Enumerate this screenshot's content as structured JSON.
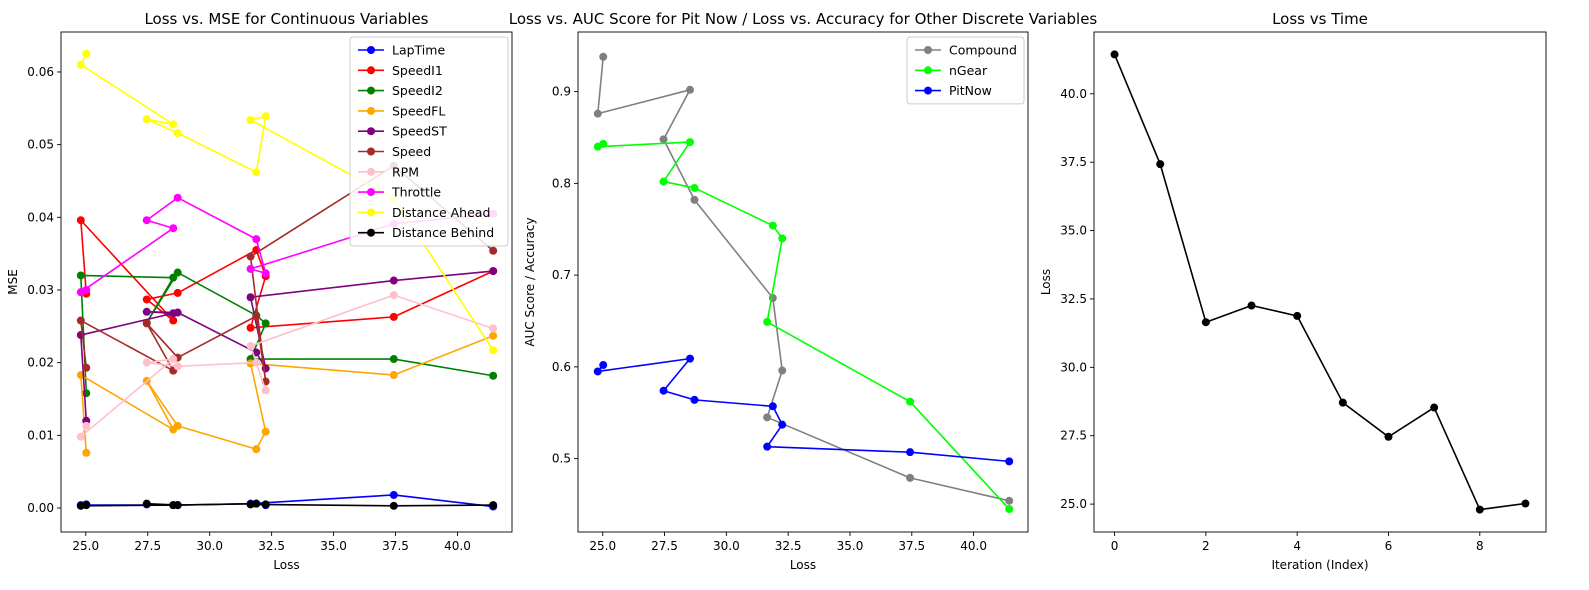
{
  "chart_data": [
    {
      "type": "line",
      "title": "Loss vs. MSE for Continuous Variables",
      "xlabel": "Loss",
      "ylabel": "MSE",
      "xlim": [
        24.0,
        42.2
      ],
      "ylim": [
        -0.0033,
        0.0655
      ],
      "xticks": [
        25.0,
        27.5,
        30.0,
        32.5,
        35.0,
        37.5,
        40.0
      ],
      "xtick_labels": [
        "25.0",
        "27.5",
        "30.0",
        "32.5",
        "35.0",
        "37.5",
        "40.0"
      ],
      "yticks": [
        0.0,
        0.01,
        0.02,
        0.03,
        0.04,
        0.05,
        0.06
      ],
      "ytick_labels": [
        "0.00",
        "0.01",
        "0.02",
        "0.03",
        "0.04",
        "0.05",
        "0.06"
      ],
      "legend_position": "top-right",
      "x": [
        41.44,
        37.43,
        31.65,
        32.26,
        31.88,
        28.71,
        27.46,
        28.53,
        24.8,
        25.02
      ],
      "series": [
        {
          "name": "LapTime",
          "color": "#0000ff",
          "values": [
            0.0002,
            0.0018,
            0.0006,
            0.0004,
            0.0006,
            0.0004,
            0.0005,
            0.0004,
            0.0004,
            0.0005
          ]
        },
        {
          "name": "SpeedI1",
          "color": "#ff0000",
          "values": [
            0.0326,
            0.0263,
            0.0248,
            0.0319,
            0.0355,
            0.0296,
            0.0287,
            0.0258,
            0.0396,
            0.0295
          ]
        },
        {
          "name": "SpeedI2",
          "color": "#008000",
          "values": [
            0.0182,
            0.0205,
            0.0205,
            0.0254,
            0.0265,
            0.0324,
            0.0255,
            0.0317,
            0.032,
            0.0158
          ]
        },
        {
          "name": "SpeedFL",
          "color": "#ffa500",
          "values": [
            0.0237,
            0.0183,
            0.0199,
            0.0105,
            0.0081,
            0.0113,
            0.0175,
            0.0108,
            0.0183,
            0.0076
          ]
        },
        {
          "name": "SpeedST",
          "color": "#800080",
          "values": [
            0.0326,
            0.0313,
            0.029,
            0.0192,
            0.0214,
            0.0269,
            0.027,
            0.0268,
            0.0238,
            0.012
          ]
        },
        {
          "name": "Speed",
          "color": "#a52a2a",
          "values": [
            0.0354,
            0.0471,
            0.0346,
            0.0174,
            0.0264,
            0.0207,
            0.0254,
            0.0189,
            0.0258,
            0.0193
          ]
        },
        {
          "name": "RPM",
          "color": "#ffc0cb",
          "values": [
            0.0247,
            0.0293,
            0.0223,
            0.0162,
            0.02,
            0.0195,
            0.02,
            0.0205,
            0.0098,
            0.0113
          ]
        },
        {
          "name": "Throttle",
          "color": "#ff00ff",
          "values": [
            0.0405,
            0.0391,
            0.0329,
            0.0323,
            0.037,
            0.0427,
            0.0396,
            0.0385,
            0.0297,
            0.03
          ]
        },
        {
          "name": "Distance Ahead",
          "color": "#ffff00",
          "values": [
            0.0217,
            0.0426,
            0.0534,
            0.0539,
            0.0462,
            0.0516,
            0.0535,
            0.0528,
            0.061,
            0.0625
          ]
        },
        {
          "name": "Distance Behind",
          "color": "#000000",
          "values": [
            0.0004,
            0.0003,
            0.0005,
            0.0005,
            0.0006,
            0.0004,
            0.0006,
            0.0004,
            0.0003,
            0.0004
          ]
        }
      ]
    },
    {
      "type": "line",
      "title": "Loss vs. AUC Score for Pit Now / Loss vs. Accuracy for Other Discrete Variables",
      "xlabel": "Loss",
      "ylabel": "AUC Score / Accuracy",
      "xlim": [
        24.0,
        42.2
      ],
      "ylim": [
        0.42,
        0.965
      ],
      "xticks": [
        25.0,
        27.5,
        30.0,
        32.5,
        35.0,
        37.5,
        40.0
      ],
      "xtick_labels": [
        "25.0",
        "27.5",
        "30.0",
        "32.5",
        "35.0",
        "37.5",
        "40.0"
      ],
      "yticks": [
        0.5,
        0.6,
        0.7,
        0.8,
        0.9
      ],
      "ytick_labels": [
        "0.5",
        "0.6",
        "0.7",
        "0.8",
        "0.9"
      ],
      "legend_position": "top-right",
      "x": [
        41.44,
        37.43,
        31.65,
        32.26,
        31.88,
        28.71,
        27.46,
        28.53,
        24.8,
        25.02
      ],
      "series": [
        {
          "name": "Compound",
          "color": "#808080",
          "values": [
            0.454,
            0.479,
            0.545,
            0.596,
            0.675,
            0.782,
            0.848,
            0.902,
            0.876,
            0.938
          ]
        },
        {
          "name": "nGear",
          "color": "#00ff00",
          "values": [
            0.445,
            0.562,
            0.649,
            0.74,
            0.754,
            0.795,
            0.802,
            0.845,
            0.84,
            0.843
          ]
        },
        {
          "name": "PitNow",
          "color": "#0000ff",
          "values": [
            0.497,
            0.507,
            0.513,
            0.537,
            0.557,
            0.564,
            0.574,
            0.609,
            0.595,
            0.602
          ]
        }
      ]
    },
    {
      "type": "line",
      "title": "Loss vs Time",
      "xlabel": "Iteration (Index)",
      "ylabel": "Loss",
      "xlim": [
        -0.45,
        9.45
      ],
      "ylim": [
        23.98,
        42.26
      ],
      "xticks": [
        0,
        2,
        4,
        6,
        8
      ],
      "xtick_labels": [
        "0",
        "2",
        "4",
        "6",
        "8"
      ],
      "yticks": [
        25.0,
        27.5,
        30.0,
        32.5,
        35.0,
        37.5,
        40.0
      ],
      "ytick_labels": [
        "25.0",
        "27.5",
        "30.0",
        "32.5",
        "35.0",
        "37.5",
        "40.0"
      ],
      "x": [
        0,
        1,
        2,
        3,
        4,
        5,
        6,
        7,
        8,
        9
      ],
      "series": [
        {
          "color": "#000000",
          "values": [
            41.44,
            37.43,
            31.65,
            32.26,
            31.88,
            28.71,
            27.46,
            28.53,
            24.8,
            25.02
          ]
        }
      ]
    }
  ]
}
